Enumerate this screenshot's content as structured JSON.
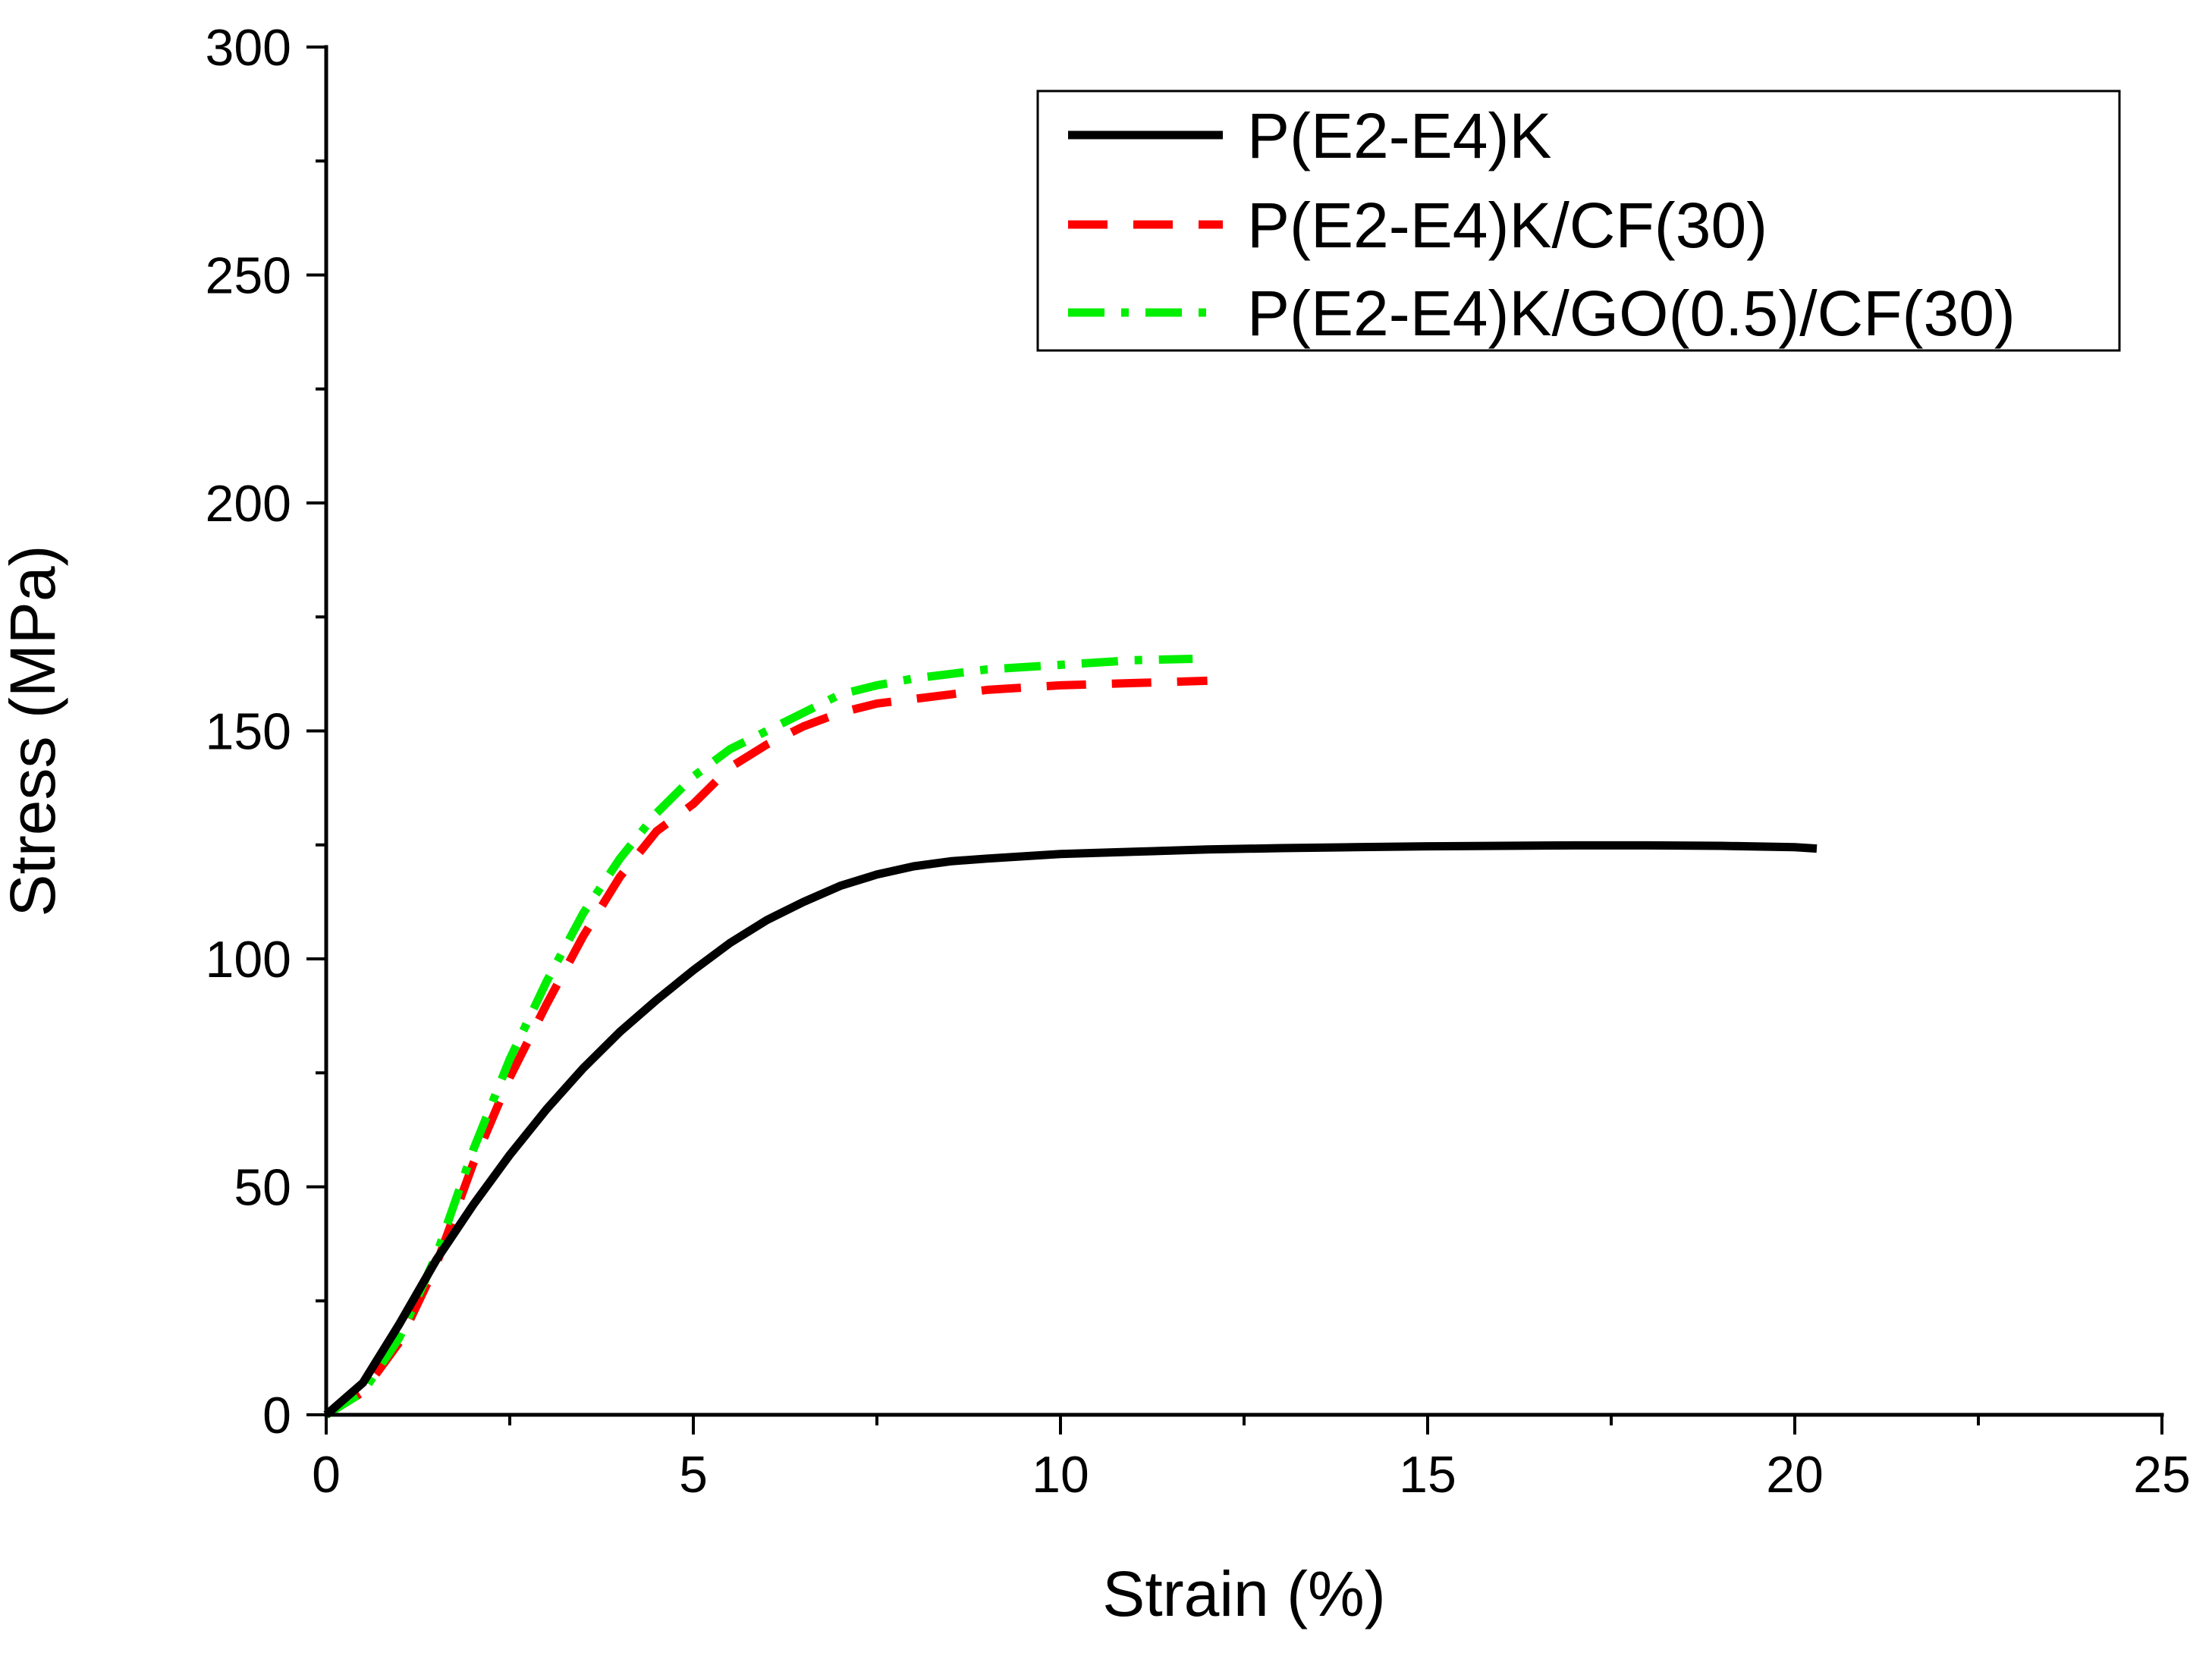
{
  "chart_data": {
    "type": "line",
    "title": "",
    "xlabel": "Strain (%)",
    "ylabel": "Stress (MPa)",
    "xlim": [
      0,
      25
    ],
    "ylim": [
      0,
      300
    ],
    "xticks": [
      0,
      5,
      10,
      15,
      20,
      25
    ],
    "yticks": [
      0,
      50,
      100,
      150,
      200,
      250,
      300
    ],
    "x_tick_labels": [
      "0",
      "5",
      "10",
      "15",
      "20",
      "25"
    ],
    "y_tick_labels": [
      "0",
      "50",
      "100",
      "150",
      "200",
      "250",
      "300"
    ],
    "grid": false,
    "legend_position": "top-right",
    "series": [
      {
        "name": "P(E2-E4)K",
        "color": "#000000",
        "style": "solid",
        "x": [
          0,
          0.5,
          1.0,
          1.5,
          2.0,
          2.5,
          3.0,
          3.5,
          4.0,
          4.5,
          5.0,
          5.5,
          6.0,
          6.5,
          7.0,
          7.5,
          8.0,
          8.5,
          9.0,
          10.0,
          11.0,
          12.0,
          13.0,
          14.0,
          15.0,
          16.0,
          17.0,
          18.0,
          19.0,
          20.0,
          20.3
        ],
        "y": [
          0,
          7,
          20,
          34,
          46,
          57,
          67,
          76,
          84,
          91,
          97.5,
          103.5,
          108.5,
          112.5,
          116,
          118.5,
          120.3,
          121.4,
          122.0,
          123.0,
          123.5,
          124.0,
          124.3,
          124.5,
          124.7,
          124.8,
          124.9,
          124.9,
          124.8,
          124.5,
          124.2
        ]
      },
      {
        "name": "P(E2-E4)K/CF(30)",
        "color": "#ff0000",
        "style": "dashed",
        "x": [
          0,
          0.5,
          1.0,
          1.5,
          2.0,
          2.5,
          3.0,
          3.5,
          4.0,
          4.5,
          5.0,
          5.5,
          6.0,
          6.5,
          7.0,
          7.5,
          8.0,
          8.5,
          9.0,
          10.0,
          11.0,
          12.0
        ],
        "y": [
          0,
          5,
          16,
          33,
          55,
          74,
          90,
          105,
          118,
          128,
          134,
          142,
          147,
          151,
          154,
          156,
          157,
          158,
          159,
          160,
          160.5,
          161
        ]
      },
      {
        "name": "P(E2-E4)K/GO(0.5)/CF(30)",
        "color": "#00ee00",
        "style": "dashdot",
        "x": [
          0,
          0.5,
          1.0,
          1.5,
          2.0,
          2.5,
          3.0,
          3.5,
          4.0,
          4.5,
          5.0,
          5.5,
          6.0,
          6.5,
          7.0,
          7.5,
          8.0,
          8.5,
          9.0,
          10.0,
          11.0,
          11.8
        ],
        "y": [
          0,
          5,
          17,
          35,
          58,
          78,
          95,
          110,
          122,
          132,
          140,
          146,
          150,
          154,
          158,
          160,
          161.5,
          162.5,
          163.5,
          164.5,
          165.5,
          165.8
        ]
      }
    ]
  }
}
